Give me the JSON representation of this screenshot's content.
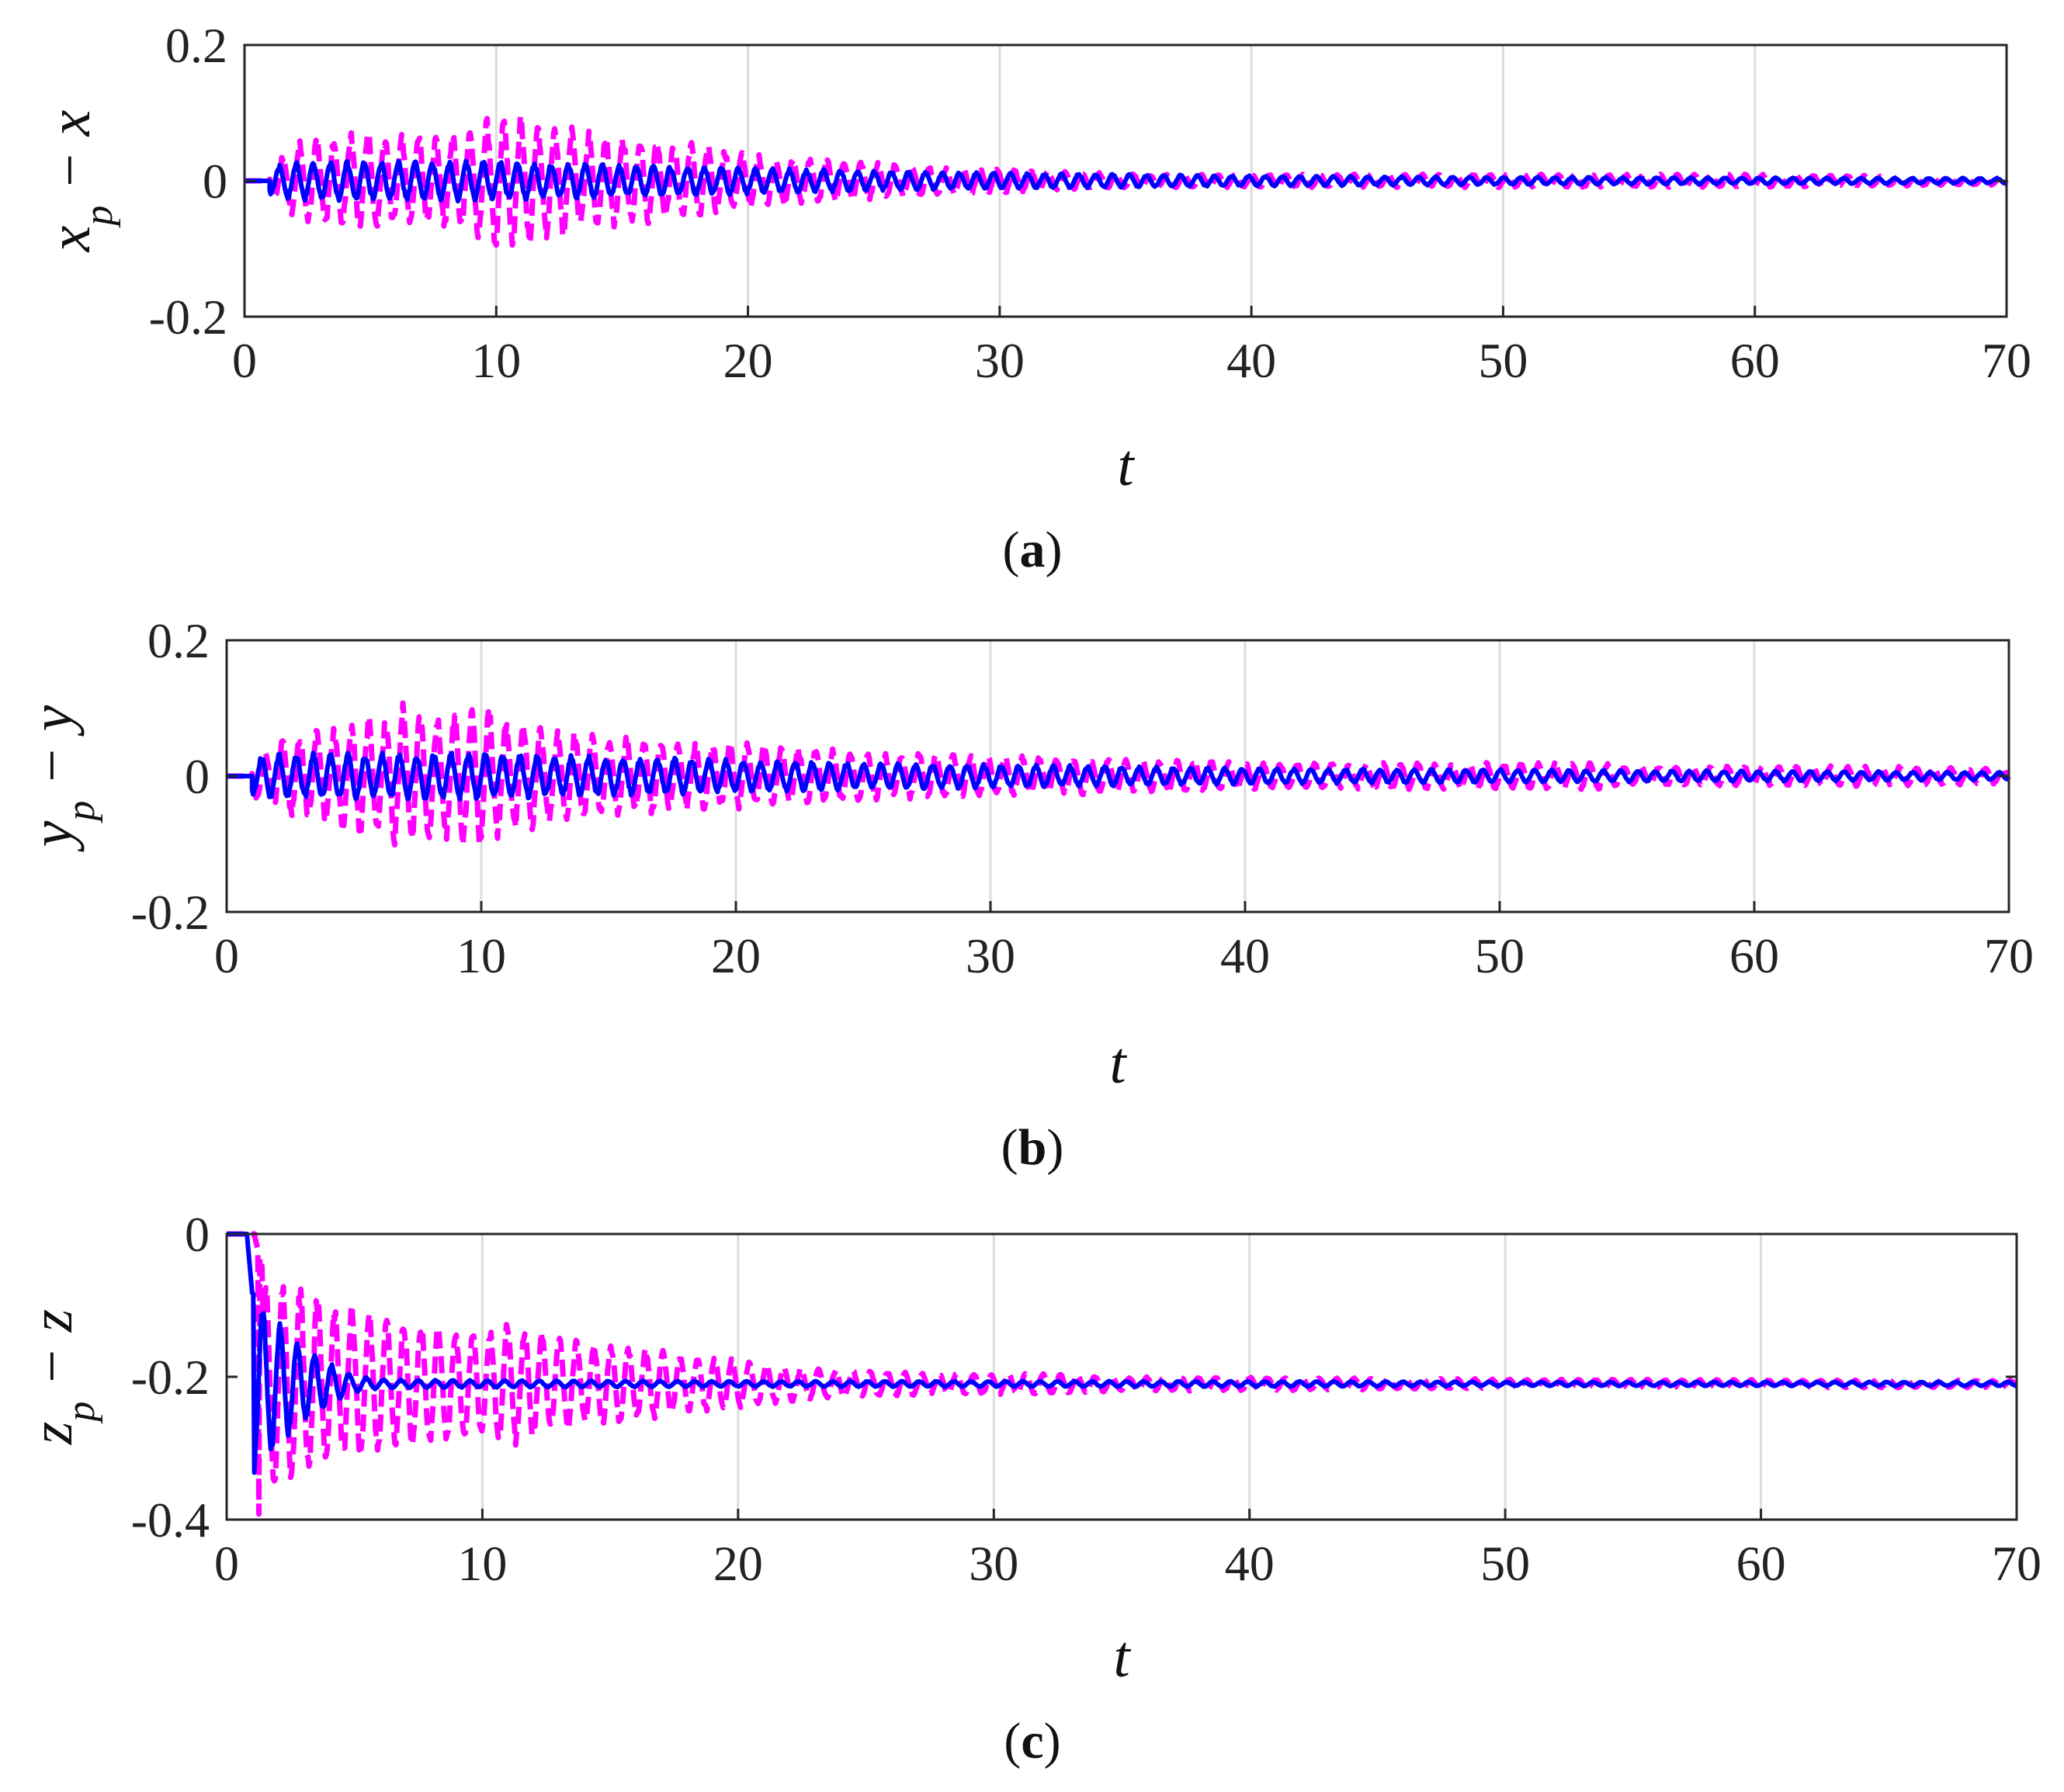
{
  "chart_data": [
    {
      "type": "line",
      "panel_caption": "a",
      "xlabel": "t",
      "ylabel": "x_p − x",
      "ylabel_base": "x",
      "ylabel_sub": "p",
      "ylabel_rest": " − x",
      "xlim": [
        0,
        70
      ],
      "ylim": [
        -0.2,
        0.2
      ],
      "xticks": [
        "0",
        "10",
        "20",
        "30",
        "40",
        "50",
        "60",
        "70"
      ],
      "yticks": [
        "-0.2",
        "0",
        "0.2"
      ],
      "grid": "x",
      "series": [
        {
          "color": "#ff00ff",
          "style": "dashed",
          "x": [
            0,
            1,
            2,
            3,
            4,
            5,
            6,
            7,
            8,
            9,
            10,
            11,
            12,
            13,
            14,
            15,
            16,
            17,
            18,
            19,
            20,
            22,
            24,
            26,
            28,
            30,
            32,
            34,
            36,
            38,
            40,
            42,
            45,
            48,
            50,
            55,
            60,
            65,
            70
          ],
          "envelope": [
            0,
            0.02,
            0.06,
            0.07,
            0.07,
            0.08,
            0.07,
            0.07,
            0.07,
            0.08,
            0.1,
            0.1,
            0.09,
            0.08,
            0.07,
            0.07,
            0.07,
            0.06,
            0.06,
            0.05,
            0.04,
            0.035,
            0.03,
            0.025,
            0.02,
            0.02,
            0.015,
            0.012,
            0.01,
            0.01,
            0.01,
            0.01,
            0.01,
            0.01,
            0.01,
            0.01,
            0.01,
            0.008,
            0.006
          ]
        },
        {
          "color": "#0000ff",
          "style": "solid",
          "x": [
            0,
            1,
            2,
            3,
            5,
            8,
            10,
            15,
            20,
            25,
            30,
            35,
            40,
            50,
            60,
            70
          ],
          "envelope": [
            0,
            0.02,
            0.03,
            0.03,
            0.03,
            0.03,
            0.03,
            0.025,
            0.02,
            0.015,
            0.012,
            0.01,
            0.008,
            0.006,
            0.005,
            0.004
          ]
        }
      ]
    },
    {
      "type": "line",
      "panel_caption": "b",
      "xlabel": "t",
      "ylabel": "y_p − y",
      "ylabel_base": "y",
      "ylabel_sub": "p",
      "ylabel_rest": " − y",
      "xlim": [
        0,
        70
      ],
      "ylim": [
        -0.2,
        0.2
      ],
      "xticks": [
        "0",
        "10",
        "20",
        "30",
        "40",
        "50",
        "60",
        "70"
      ],
      "yticks": [
        "-0.2",
        "0",
        "0.2"
      ],
      "grid": "x",
      "series": [
        {
          "color": "#ff00ff",
          "style": "dashed",
          "x": [
            0,
            1,
            2,
            3,
            4,
            5,
            6,
            7,
            8,
            9,
            10,
            11,
            12,
            13,
            14,
            15,
            16,
            17,
            18,
            19,
            20,
            22,
            24,
            26,
            28,
            30,
            32,
            34,
            36,
            38,
            40,
            45,
            50,
            54,
            55,
            60,
            65,
            70
          ],
          "envelope": [
            0,
            0.03,
            0.05,
            0.07,
            0.07,
            0.09,
            0.09,
            0.11,
            0.1,
            0.1,
            0.11,
            0.09,
            0.08,
            0.07,
            0.07,
            0.06,
            0.06,
            0.06,
            0.05,
            0.05,
            0.05,
            0.045,
            0.04,
            0.035,
            0.035,
            0.03,
            0.03,
            0.028,
            0.025,
            0.025,
            0.02,
            0.02,
            0.02,
            0.02,
            0.015,
            0.015,
            0.015,
            0.012
          ]
        },
        {
          "color": "#0000ff",
          "style": "solid",
          "x": [
            0,
            1,
            2,
            3,
            5,
            8,
            10,
            15,
            20,
            25,
            30,
            35,
            40,
            50,
            60,
            70
          ],
          "envelope": [
            0,
            0.03,
            0.035,
            0.035,
            0.035,
            0.035,
            0.035,
            0.03,
            0.025,
            0.02,
            0.018,
            0.015,
            0.012,
            0.01,
            0.008,
            0.006
          ]
        }
      ]
    },
    {
      "type": "line",
      "panel_caption": "c",
      "xlabel": "t",
      "ylabel": "z_p − z",
      "ylabel_base": "z",
      "ylabel_sub": "p",
      "ylabel_rest": " − z",
      "xlim": [
        0,
        70
      ],
      "ylim": [
        -0.4,
        0
      ],
      "xticks": [
        "0",
        "10",
        "20",
        "30",
        "40",
        "50",
        "60",
        "70"
      ],
      "yticks": [
        "-0.4",
        "-0.2",
        "0"
      ],
      "grid": "x",
      "baseline": -0.21,
      "series": [
        {
          "color": "#ff00ff",
          "style": "dashed",
          "start": 1.1,
          "x": [
            1.1,
            1.5,
            2,
            3,
            4,
            5,
            6,
            7,
            8,
            9,
            10,
            11,
            12,
            13,
            14,
            15,
            16,
            17,
            18,
            19,
            20,
            22,
            24,
            26,
            28,
            30,
            32,
            35,
            38,
            40,
            45,
            50,
            60,
            70
          ],
          "envelope": [
            0.21,
            0.15,
            0.15,
            0.14,
            0.12,
            0.11,
            0.1,
            0.09,
            0.09,
            0.08,
            0.08,
            0.09,
            0.08,
            0.07,
            0.06,
            0.06,
            0.05,
            0.05,
            0.04,
            0.04,
            0.035,
            0.025,
            0.02,
            0.018,
            0.015,
            0.015,
            0.015,
            0.01,
            0.01,
            0.01,
            0.008,
            0.007,
            0.006,
            0.005
          ]
        },
        {
          "color": "#0000ff",
          "style": "solid",
          "start": 0.8,
          "x": [
            0.8,
            1,
            1.5,
            2,
            3,
            4,
            5,
            6,
            10,
            20,
            30,
            40,
            50,
            60,
            70
          ],
          "envelope": [
            0.21,
            0.13,
            0.11,
            0.09,
            0.06,
            0.03,
            0.012,
            0.006,
            0.005,
            0.004,
            0.004,
            0.004,
            0.003,
            0.003,
            0.003
          ]
        }
      ]
    }
  ]
}
